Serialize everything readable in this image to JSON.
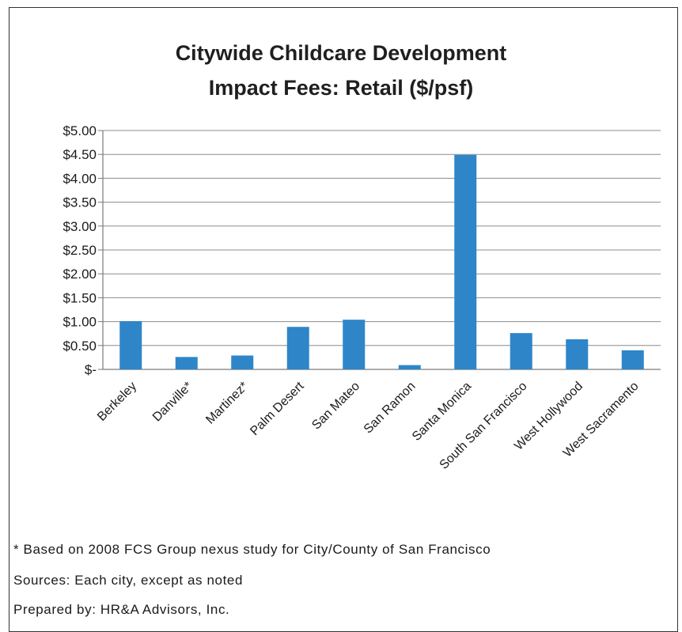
{
  "chart_data": {
    "type": "bar",
    "title_line1": "Citywide Childcare Development",
    "title_line2": "Impact Fees: Retail ($/psf)",
    "categories": [
      "Berkeley",
      "Danville*",
      "Martinez*",
      "Palm Desert",
      "San Mateo",
      "San Ramon",
      "Santa Monica",
      "South San Francisco",
      "West Hollywood",
      "West Sacramento"
    ],
    "values": [
      1.01,
      0.26,
      0.29,
      0.89,
      1.04,
      0.09,
      4.49,
      0.76,
      0.63,
      0.4
    ],
    "ylim": [
      0,
      5
    ],
    "yticks": [
      0,
      0.5,
      1,
      1.5,
      2,
      2.5,
      3,
      3.5,
      4,
      4.5,
      5
    ],
    "ytick_labels": [
      "$-",
      "$0.50",
      "$1.00",
      "$1.50",
      "$2.00",
      "$2.50",
      "$3.00",
      "$3.50",
      "$4.00",
      "$4.50",
      "$5.00"
    ],
    "grid": true,
    "bar_color": "#2e86c8"
  },
  "notes": {
    "footnote": "* Based on 2008 FCS Group nexus study for City/County of San Francisco",
    "sources": "Sources: Each city, except as noted",
    "prepared": "Prepared by: HR&A Advisors, Inc."
  }
}
